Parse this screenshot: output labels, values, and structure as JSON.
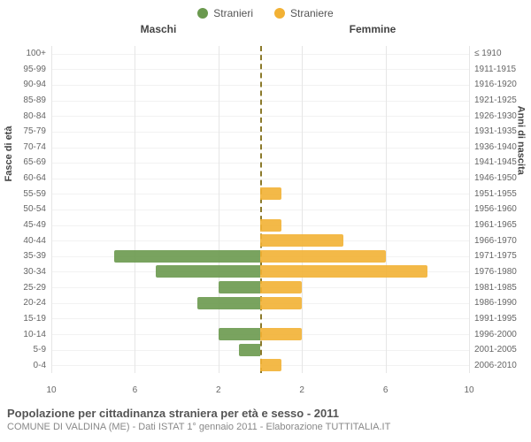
{
  "chart": {
    "type": "population-pyramid",
    "legend": {
      "male": {
        "label": "Stranieri",
        "color": "#6a994e"
      },
      "female": {
        "label": "Straniere",
        "color": "#f2b134"
      }
    },
    "section_headers": {
      "left": "Maschi",
      "right": "Femmine"
    },
    "y_left_title": "Fasce di età",
    "y_right_title": "Anni di nascita",
    "age_groups": [
      "100+",
      "95-99",
      "90-94",
      "85-89",
      "80-84",
      "75-79",
      "70-74",
      "65-69",
      "60-64",
      "55-59",
      "50-54",
      "45-49",
      "40-44",
      "35-39",
      "30-34",
      "25-29",
      "20-24",
      "15-19",
      "10-14",
      "5-9",
      "0-4"
    ],
    "birth_years": [
      "≤ 1910",
      "1911-1915",
      "1916-1920",
      "1921-1925",
      "1926-1930",
      "1931-1935",
      "1936-1940",
      "1941-1945",
      "1946-1950",
      "1951-1955",
      "1956-1960",
      "1961-1965",
      "1966-1970",
      "1971-1975",
      "1976-1980",
      "1981-1985",
      "1986-1990",
      "1991-1995",
      "1996-2000",
      "2001-2005",
      "2006-2010"
    ],
    "males": [
      0,
      0,
      0,
      0,
      0,
      0,
      0,
      0,
      0,
      0,
      0,
      0,
      0,
      7,
      5,
      2,
      3,
      0,
      2,
      1,
      0
    ],
    "females": [
      0,
      0,
      0,
      0,
      0,
      0,
      0,
      0,
      0,
      1,
      0,
      1,
      4,
      6,
      8,
      2,
      2,
      0,
      2,
      0,
      1
    ],
    "x_axis": {
      "max": 10,
      "ticks_left": [
        10,
        6,
        2
      ],
      "ticks_right": [
        2,
        6,
        10
      ]
    },
    "styling": {
      "bar_opacity": 0.9,
      "male_color": "#6a994e",
      "female_color": "#f2b134",
      "grid_color_v": "#e6e6e6",
      "grid_color_h": "#f2f2f2",
      "center_line_color": "#8b7a2b",
      "background": "#ffffff",
      "tick_fontsize": 10,
      "legend_fontsize": 12,
      "header_fontsize": 12,
      "title_fontsize": 13,
      "subtitle_fontsize": 11,
      "bar_row_height": 14
    }
  },
  "footer": {
    "title": "Popolazione per cittadinanza straniera per età e sesso - 2011",
    "subtitle": "COMUNE DI VALDINA (ME) - Dati ISTAT 1° gennaio 2011 - Elaborazione TUTTITALIA.IT"
  }
}
